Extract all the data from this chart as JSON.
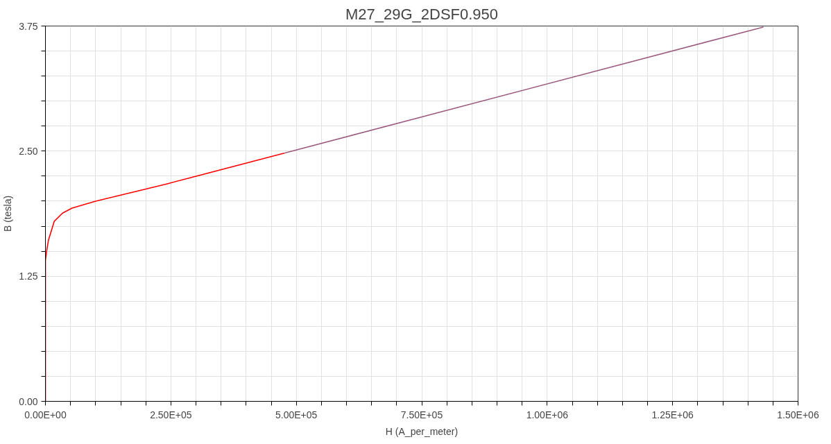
{
  "chart_data": {
    "type": "line",
    "title": "M27_29G_2DSF0.950",
    "xlabel": "H (A_per_meter)",
    "ylabel": "B (tesla)",
    "series": [
      {
        "color": "#ff0000",
        "x": [
          0,
          0,
          2400,
          6000,
          17700,
          34000,
          53000,
          100000,
          240000,
          476000
        ],
        "values": [
          0,
          1.41,
          1.5,
          1.61,
          1.8,
          1.88,
          1.93,
          2.0,
          2.17,
          2.48
        ]
      },
      {
        "color": "#9b5b7f",
        "x": [
          476000,
          1431000
        ],
        "values": [
          2.48,
          3.74
        ]
      }
    ],
    "xlim": [
      0,
      1500000
    ],
    "ylim": [
      0,
      3.75
    ],
    "xticks": [
      {
        "value": 0,
        "label": "0.00E+00"
      },
      {
        "value": 50000,
        "label": null
      },
      {
        "value": 100000,
        "label": null
      },
      {
        "value": 150000,
        "label": null
      },
      {
        "value": 200000,
        "label": null
      },
      {
        "value": 250000,
        "label": "2.50E+05"
      },
      {
        "value": 300000,
        "label": null
      },
      {
        "value": 350000,
        "label": null
      },
      {
        "value": 400000,
        "label": null
      },
      {
        "value": 450000,
        "label": null
      },
      {
        "value": 500000,
        "label": "5.00E+05"
      },
      {
        "value": 550000,
        "label": null
      },
      {
        "value": 600000,
        "label": null
      },
      {
        "value": 650000,
        "label": null
      },
      {
        "value": 700000,
        "label": null
      },
      {
        "value": 750000,
        "label": "7.50E+05"
      },
      {
        "value": 800000,
        "label": null
      },
      {
        "value": 850000,
        "label": null
      },
      {
        "value": 900000,
        "label": null
      },
      {
        "value": 950000,
        "label": null
      },
      {
        "value": 1000000,
        "label": "1.00E+06"
      },
      {
        "value": 1050000,
        "label": null
      },
      {
        "value": 1100000,
        "label": null
      },
      {
        "value": 1150000,
        "label": null
      },
      {
        "value": 1200000,
        "label": null
      },
      {
        "value": 1250000,
        "label": "1.25E+06"
      },
      {
        "value": 1300000,
        "label": null
      },
      {
        "value": 1350000,
        "label": null
      },
      {
        "value": 1400000,
        "label": null
      },
      {
        "value": 1450000,
        "label": null
      },
      {
        "value": 1500000,
        "label": "1.50E+06"
      }
    ],
    "yticks": [
      {
        "value": 0,
        "label": "0.00"
      },
      {
        "value": 0.25,
        "label": null
      },
      {
        "value": 0.5,
        "label": null
      },
      {
        "value": 0.75,
        "label": null
      },
      {
        "value": 1.0,
        "label": null
      },
      {
        "value": 1.25,
        "label": "1.25"
      },
      {
        "value": 1.5,
        "label": null
      },
      {
        "value": 1.75,
        "label": null
      },
      {
        "value": 2.0,
        "label": null
      },
      {
        "value": 2.25,
        "label": null
      },
      {
        "value": 2.5,
        "label": "2.50"
      },
      {
        "value": 2.75,
        "label": null
      },
      {
        "value": 3.0,
        "label": null
      },
      {
        "value": 3.25,
        "label": null
      },
      {
        "value": 3.5,
        "label": null
      },
      {
        "value": 3.75,
        "label": "3.75"
      }
    ],
    "grid": true,
    "marker": "none",
    "line_style": "solid"
  }
}
